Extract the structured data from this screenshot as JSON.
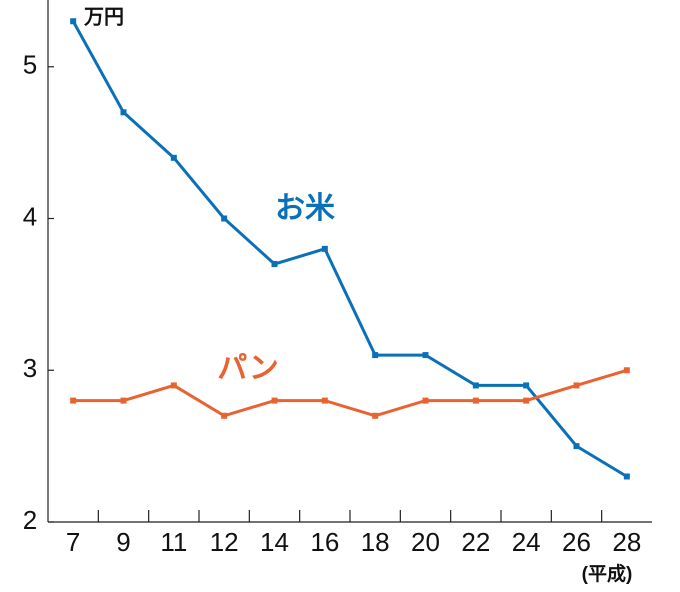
{
  "chart_data": {
    "type": "line",
    "y_unit": "万円",
    "x_unit": "(平成)",
    "categories": [
      "7",
      "9",
      "11",
      "12",
      "14",
      "16",
      "18",
      "20",
      "22",
      "24",
      "26",
      "28"
    ],
    "series": [
      {
        "name": "お米",
        "color": "#0a70b7",
        "values": [
          5.3,
          4.7,
          4.4,
          4.0,
          3.7,
          3.8,
          3.1,
          3.1,
          2.9,
          2.9,
          2.5,
          2.3
        ]
      },
      {
        "name": "パン",
        "color": "#e8632f",
        "values": [
          2.8,
          2.8,
          2.9,
          2.7,
          2.8,
          2.8,
          2.7,
          2.8,
          2.8,
          2.8,
          2.9,
          3.0
        ]
      }
    ],
    "ylim": [
      2,
      5.44
    ],
    "yticks": [
      2,
      3,
      4,
      5
    ]
  }
}
